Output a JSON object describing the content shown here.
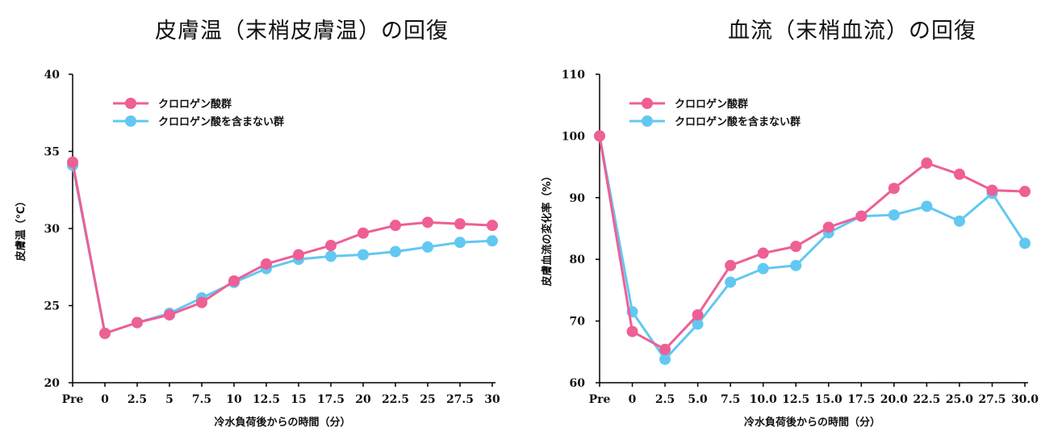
{
  "colors": {
    "pink": "#ee5f95",
    "blue": "#62c8f2",
    "axis": "#000000"
  },
  "chart_data": [
    {
      "type": "line",
      "title": "皮膚温（末梢皮膚温）の回復",
      "xlabel": "冷水負荷後からの時間（分）",
      "ylabel": "皮膚温（℃）",
      "categories": [
        "Pre",
        "0",
        "2.5",
        "5",
        "7.5",
        "10",
        "12.5",
        "15",
        "17.5",
        "20",
        "22.5",
        "25",
        "27.5",
        "30"
      ],
      "ylim": [
        20,
        40
      ],
      "yticks": [
        20,
        25,
        30,
        35,
        40
      ],
      "legend_position": "top-left",
      "series": [
        {
          "name": "クロロゲン酸を含まない群",
          "color": "#62c8f2",
          "values": [
            34.1,
            23.2,
            23.9,
            24.5,
            25.5,
            26.5,
            27.4,
            28.0,
            28.2,
            28.3,
            28.5,
            28.8,
            29.1,
            29.2
          ]
        },
        {
          "name": "クロロゲン酸群",
          "color": "#ee5f95",
          "values": [
            34.3,
            23.2,
            23.9,
            24.4,
            25.2,
            26.6,
            27.7,
            28.3,
            28.9,
            29.7,
            30.2,
            30.4,
            30.3,
            30.2
          ]
        }
      ]
    },
    {
      "type": "line",
      "title": "血流（末梢血流）の回復",
      "xlabel": "冷水負荷後からの時間（分）",
      "ylabel": "皮膚血流の変化率（%）",
      "categories": [
        "Pre",
        "0",
        "2.5",
        "5.0",
        "7.5",
        "10.0",
        "12.5",
        "15.0",
        "17.5",
        "20.0",
        "22.5",
        "25.0",
        "27.5",
        "30.0"
      ],
      "ylim": [
        60,
        110
      ],
      "yticks": [
        60,
        70,
        80,
        90,
        100,
        110
      ],
      "legend_position": "top-left",
      "series": [
        {
          "name": "クロロゲン酸を含まない群",
          "color": "#62c8f2",
          "values": [
            100,
            71.5,
            63.8,
            69.5,
            76.3,
            78.5,
            79.0,
            84.3,
            87.0,
            87.2,
            88.6,
            86.2,
            90.7,
            82.6
          ]
        },
        {
          "name": "クロロゲン酸群",
          "color": "#ee5f95",
          "values": [
            100,
            68.3,
            65.4,
            71.0,
            79.0,
            81.0,
            82.1,
            85.2,
            87.0,
            91.5,
            95.6,
            93.8,
            91.2,
            91.0
          ]
        }
      ]
    }
  ]
}
